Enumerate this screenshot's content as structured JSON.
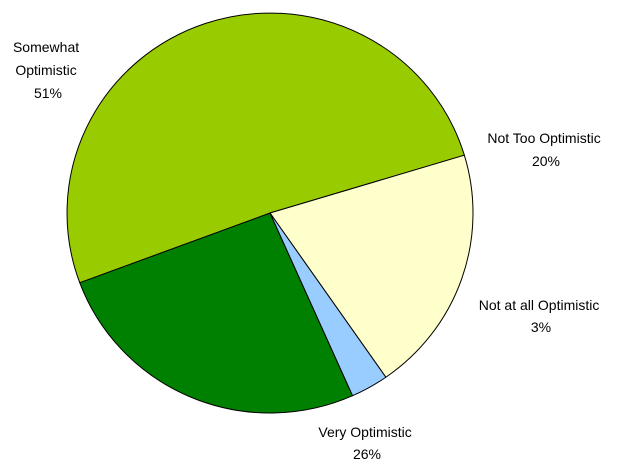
{
  "chart_data": {
    "type": "pie",
    "slices": [
      {
        "label": "Very Optimistic",
        "value": 26,
        "display": "26%",
        "color": "#008000"
      },
      {
        "label": "Somewhat Optimistic",
        "label_lines": [
          "Somewhat",
          "Optimistic"
        ],
        "value": 51,
        "display": "51%",
        "color": "#99CC00"
      },
      {
        "label": "Not Too Optimistic",
        "value": 20,
        "display": "20%",
        "color": "#FFFFCC"
      },
      {
        "label": "Not at all Optimistic",
        "value": 3,
        "display": "3%",
        "color": "#99CCFF"
      }
    ],
    "legend": "none",
    "start_angle_deg": 156
  }
}
